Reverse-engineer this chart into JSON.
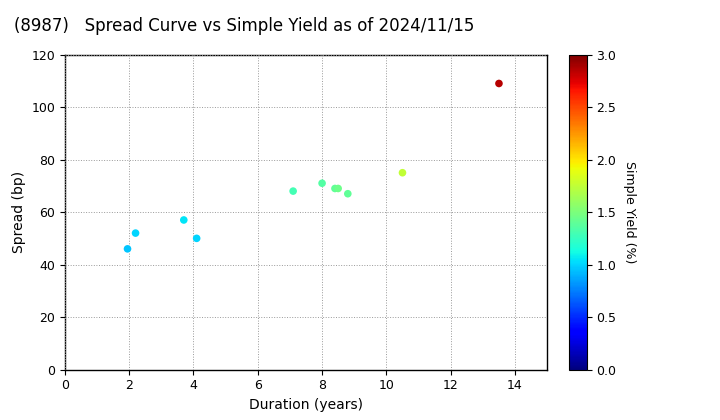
{
  "title": "(8987)   Spread Curve vs Simple Yield as of 2024/11/15",
  "xlabel": "Duration (years)",
  "ylabel": "Spread (bp)",
  "colorbar_label": "Simple Yield (%)",
  "xlim": [
    0,
    15
  ],
  "ylim": [
    0,
    120
  ],
  "xticks": [
    0,
    2,
    4,
    6,
    8,
    10,
    12,
    14
  ],
  "yticks": [
    0,
    20,
    40,
    60,
    80,
    100,
    120
  ],
  "colorbar_min": 0.0,
  "colorbar_max": 3.0,
  "colorbar_ticks": [
    0.0,
    0.5,
    1.0,
    1.5,
    2.0,
    2.5,
    3.0
  ],
  "points": [
    {
      "duration": 1.95,
      "spread": 46,
      "simple_yield": 0.95
    },
    {
      "duration": 2.2,
      "spread": 52,
      "simple_yield": 1.0
    },
    {
      "duration": 3.7,
      "spread": 57,
      "simple_yield": 1.05
    },
    {
      "duration": 4.1,
      "spread": 50,
      "simple_yield": 1.0
    },
    {
      "duration": 7.1,
      "spread": 68,
      "simple_yield": 1.3
    },
    {
      "duration": 8.0,
      "spread": 71,
      "simple_yield": 1.35
    },
    {
      "duration": 8.4,
      "spread": 69,
      "simple_yield": 1.4
    },
    {
      "duration": 8.5,
      "spread": 69,
      "simple_yield": 1.45
    },
    {
      "duration": 8.8,
      "spread": 67,
      "simple_yield": 1.4
    },
    {
      "duration": 10.5,
      "spread": 75,
      "simple_yield": 1.75
    },
    {
      "duration": 13.5,
      "spread": 109,
      "simple_yield": 2.85
    }
  ],
  "marker_size": 30,
  "background_color": "#ffffff",
  "grid_color": "#999999",
  "title_fontsize": 12,
  "axis_fontsize": 10,
  "tick_fontsize": 9,
  "colorbar_fontsize": 9
}
